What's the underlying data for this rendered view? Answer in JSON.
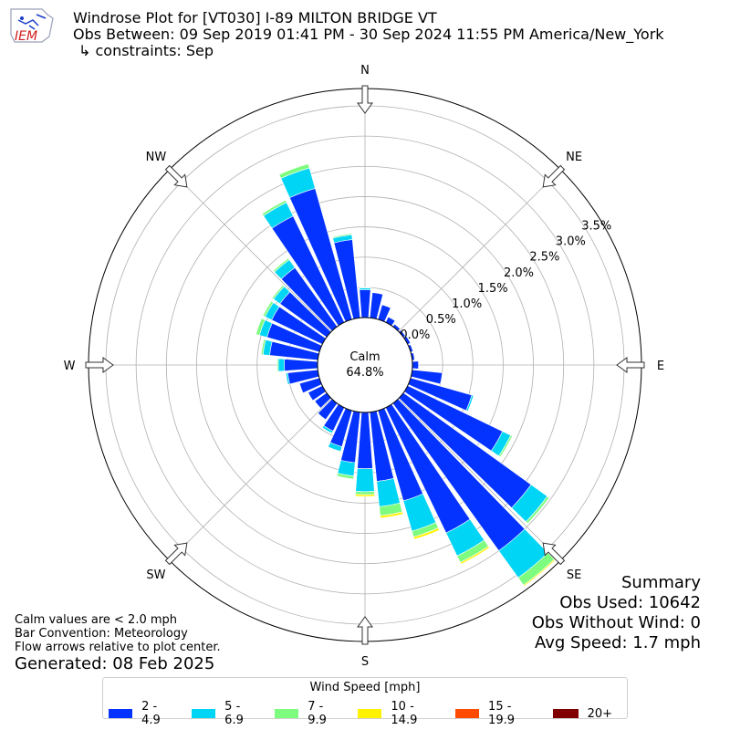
{
  "header": {
    "title_line1": "Windrose Plot for [VT030] I-89 MILTON BRIDGE  VT",
    "title_line2": "Obs Between: 09 Sep 2019 01:41 PM - 30 Sep 2024 11:55 PM America/New_York",
    "title_line3": "↳ constraints: Sep",
    "logo_text": "IEM"
  },
  "summary": {
    "heading": "Summary",
    "obs_used": "Obs Used: 10642",
    "obs_without_wind": "Obs Without Wind: 0",
    "avg_speed": "Avg Speed: 1.7 mph"
  },
  "notes": {
    "line1": "Calm values are < 2.0 mph",
    "line2": "Bar Convention: Meteorology",
    "line3": "Flow arrows relative to plot center.",
    "generated": "Generated: 08 Feb 2025"
  },
  "calm": {
    "label": "Calm",
    "value": "64.8%"
  },
  "legend": {
    "title": "Wind Speed [mph]",
    "items": [
      {
        "label": "2 - 4.9",
        "color": "#0433ff"
      },
      {
        "label": "5 - 6.9",
        "color": "#00d5f5"
      },
      {
        "label": "7 - 9.9",
        "color": "#7efc7f"
      },
      {
        "label": "10 - 14.9",
        "color": "#fff200"
      },
      {
        "label": "15 - 19.9",
        "color": "#ff4b00"
      },
      {
        "label": "20+",
        "color": "#800000"
      }
    ]
  },
  "chart_data": {
    "type": "windrose",
    "directions": [
      "N",
      "NNE",
      "NE",
      "ENE",
      "E",
      "ESE",
      "SE",
      "SSE",
      "S",
      "SSW",
      "SW",
      "WSW",
      "W",
      "WNW",
      "NW",
      "NNW"
    ],
    "compass_labels": [
      "N",
      "NE",
      "E",
      "SE",
      "S",
      "SW",
      "W",
      "NW"
    ],
    "radial_ticks": [
      "0.0%",
      "0.5%",
      "1.0%",
      "1.5%",
      "2.0%",
      "2.5%",
      "3.0%",
      "3.5%"
    ],
    "radial_tick_values": [
      0,
      0.5,
      1.0,
      1.5,
      2.0,
      2.5,
      3.0,
      3.5
    ],
    "rmax": 3.5,
    "bins_deg": [
      0,
      10,
      20,
      30,
      40,
      50,
      60,
      70,
      80,
      90,
      100,
      110,
      120,
      130,
      140,
      150,
      160,
      170,
      180,
      190,
      200,
      210,
      220,
      230,
      240,
      250,
      260,
      270,
      280,
      290,
      300,
      310,
      320,
      330,
      340,
      350
    ],
    "series": [
      {
        "name": "2 - 4.9",
        "values": [
          0.46,
          0.42,
          0.25,
          0.1,
          0.05,
          0.04,
          0.05,
          0.04,
          0.04,
          0.1,
          0.5,
          1.05,
          1.74,
          2.6,
          3.0,
          2.3,
          1.55,
          1.15,
          0.93,
          0.84,
          0.62,
          0.43,
          0.33,
          0.24,
          0.26,
          0.34,
          0.5,
          0.55,
          0.8,
          0.9,
          0.93,
          0.95,
          1.2,
          1.95,
          2.25,
          1.3
        ]
      },
      {
        "name": "5 - 6.9",
        "values": [
          0.03,
          0,
          0,
          0,
          0,
          0,
          0,
          0,
          0,
          0,
          0,
          0.03,
          0.15,
          0.33,
          0.55,
          0.42,
          0.52,
          0.42,
          0.38,
          0.22,
          0.08,
          0.04,
          0.01,
          0.01,
          0,
          0,
          0.03,
          0.1,
          0.11,
          0.13,
          0.12,
          0.13,
          0.16,
          0.25,
          0.35,
          0.08
        ]
      },
      {
        "name": "7 - 9.9",
        "values": [
          0.01,
          0,
          0,
          0,
          0,
          0,
          0,
          0,
          0,
          0,
          0,
          0,
          0.03,
          0.04,
          0.15,
          0.12,
          0.1,
          0.15,
          0.05,
          0.05,
          0,
          0,
          0,
          0,
          0,
          0,
          0,
          0.02,
          0.03,
          0.06,
          0.04,
          0.03,
          0.03,
          0.04,
          0.07,
          0.02
        ]
      },
      {
        "name": "10 - 14.9",
        "values": [
          0,
          0,
          0,
          0,
          0,
          0,
          0,
          0,
          0,
          0,
          0,
          0,
          0,
          0,
          0.02,
          0.03,
          0.04,
          0.04,
          0.03,
          0,
          0,
          0,
          0,
          0,
          0,
          0,
          0,
          0,
          0,
          0,
          0,
          0,
          0,
          0,
          0,
          0
        ]
      },
      {
        "name": "15 - 19.9",
        "values": [
          0,
          0,
          0,
          0,
          0,
          0,
          0,
          0,
          0,
          0,
          0,
          0,
          0,
          0,
          0,
          0,
          0,
          0,
          0,
          0,
          0,
          0,
          0,
          0,
          0,
          0,
          0,
          0,
          0,
          0,
          0,
          0,
          0,
          0,
          0,
          0
        ]
      },
      {
        "name": "20+",
        "values": [
          0,
          0,
          0,
          0,
          0,
          0,
          0,
          0,
          0,
          0,
          0,
          0,
          0,
          0,
          0,
          0,
          0,
          0,
          0,
          0,
          0,
          0,
          0,
          0,
          0,
          0,
          0,
          0,
          0,
          0,
          0,
          0,
          0,
          0,
          0,
          0
        ]
      }
    ]
  }
}
